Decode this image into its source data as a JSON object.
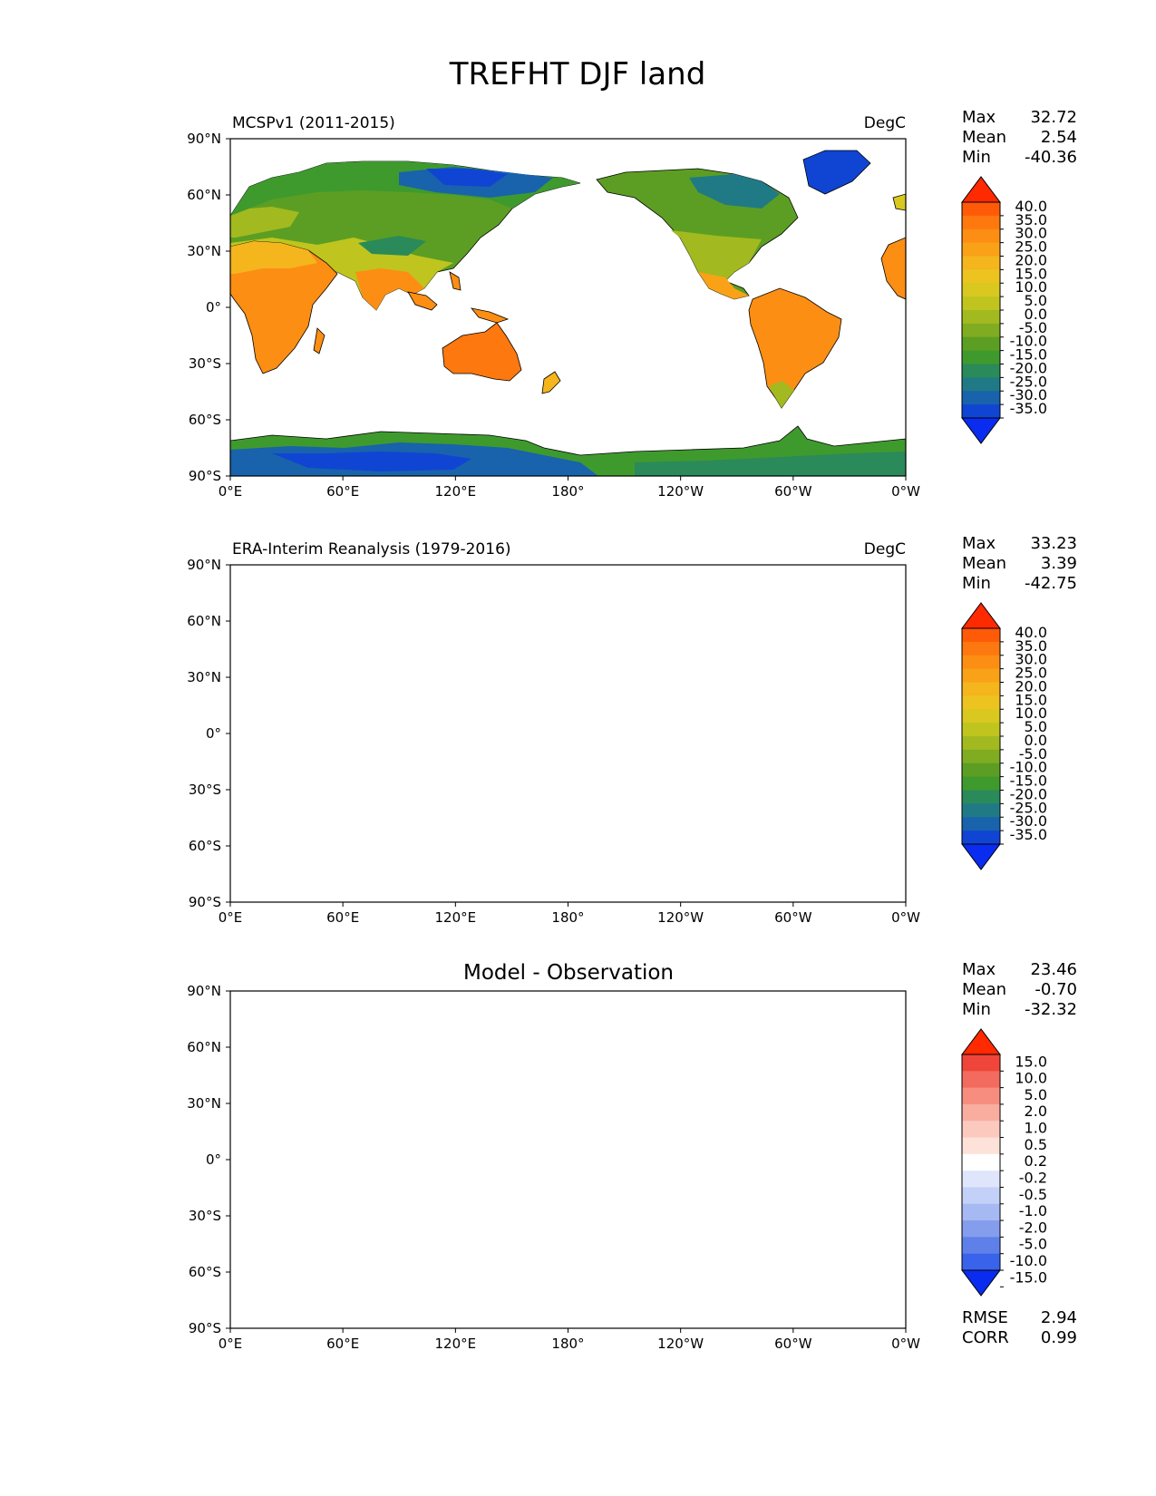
{
  "title": "TREFHT DJF land",
  "lat_labels": [
    "90°N",
    "60°N",
    "30°N",
    "0°",
    "30°S",
    "60°S",
    "90°S"
  ],
  "lon_labels": [
    "0°E",
    "60°E",
    "120°E",
    "180°",
    "120°W",
    "60°W",
    "0°W"
  ],
  "panels": [
    {
      "left_title": "MCSPv1 (2011-2015)",
      "center_title": "",
      "units": "DegC",
      "stats": [
        {
          "label": "Max",
          "value": "32.72"
        },
        {
          "label": "Mean",
          "value": "2.54"
        },
        {
          "label": "Min",
          "value": "-40.36"
        }
      ],
      "colorbar_levels": [
        "40.0",
        "35.0",
        "30.0",
        "25.0",
        "20.0",
        "15.0",
        "10.0",
        "5.0",
        "0.0",
        "-5.0",
        "-10.0",
        "-15.0",
        "-20.0",
        "-25.0",
        "-30.0",
        "-35.0"
      ],
      "colorbar_colors": [
        "#ff2a00",
        "#fe5a07",
        "#fd780e",
        "#fc8e13",
        "#f9a218",
        "#f5b51d",
        "#ecc31f",
        "#d8c81f",
        "#bfc51e",
        "#a2ba1f",
        "#7fac21",
        "#5c9e23",
        "#3f9a2e",
        "#2a8a59",
        "#1f7a86",
        "#1863ab",
        "#1045d3",
        "#0a2cf0"
      ],
      "kind": "abs"
    },
    {
      "left_title": "ERA-Interim Reanalysis (1979-2016)",
      "center_title": "",
      "units": "DegC",
      "stats": [
        {
          "label": "Max",
          "value": "33.23"
        },
        {
          "label": "Mean",
          "value": "3.39"
        },
        {
          "label": "Min",
          "value": "-42.75"
        }
      ],
      "colorbar_levels": [
        "40.0",
        "35.0",
        "30.0",
        "25.0",
        "20.0",
        "15.0",
        "10.0",
        "5.0",
        "0.0",
        "-5.0",
        "-10.0",
        "-15.0",
        "-20.0",
        "-25.0",
        "-30.0",
        "-35.0"
      ],
      "colorbar_colors": [
        "#ff2a00",
        "#fe5a07",
        "#fd780e",
        "#fc8e13",
        "#f9a218",
        "#f5b51d",
        "#ecc31f",
        "#d8c81f",
        "#bfc51e",
        "#a2ba1f",
        "#7fac21",
        "#5c9e23",
        "#3f9a2e",
        "#2a8a59",
        "#1f7a86",
        "#1863ab",
        "#1045d3",
        "#0a2cf0"
      ],
      "kind": "abs"
    },
    {
      "left_title": "",
      "center_title": "Model - Observation",
      "units": "",
      "stats": [
        {
          "label": "Max",
          "value": "23.46"
        },
        {
          "label": "Mean",
          "value": "-0.70"
        },
        {
          "label": "Min",
          "value": "-32.32"
        }
      ],
      "colorbar_levels": [
        "15.0",
        "10.0",
        "5.0",
        "2.0",
        "1.0",
        "0.5",
        "0.2",
        "-0.2",
        "-0.5",
        "-1.0",
        "-2.0",
        "-5.0",
        "-10.0",
        "-15.0"
      ],
      "colorbar_colors": [
        "#ff2a00",
        "#f0453a",
        "#f36b5e",
        "#f78d7f",
        "#f9ad9f",
        "#fcc9be",
        "#fde2da",
        "#ffffff",
        "#dfe6fb",
        "#c3d0f7",
        "#a6b9f2",
        "#849ded",
        "#5e80e8",
        "#3863ea",
        "#0a2cf0"
      ],
      "kind": "diff",
      "extra_stats": [
        {
          "label": "RMSE",
          "value": "2.94"
        },
        {
          "label": "CORR",
          "value": "0.99"
        }
      ]
    }
  ]
}
